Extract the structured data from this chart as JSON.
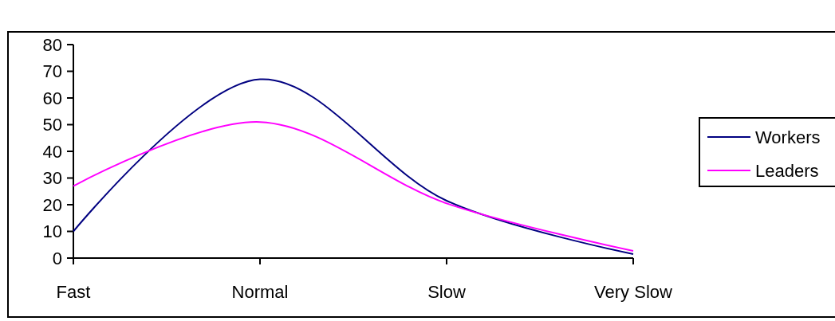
{
  "chart_data": {
    "type": "line",
    "categories": [
      "Fast",
      "Normal",
      "Slow",
      "Very Slow"
    ],
    "series": [
      {
        "name": "Workers",
        "color": "#000080",
        "values": [
          10,
          67,
          21.5,
          1.5
        ]
      },
      {
        "name": "Leaders",
        "color": "#ff00ff",
        "values": [
          27,
          51,
          20.5,
          2.7
        ]
      }
    ],
    "ylim": [
      0,
      80
    ],
    "yticks": [
      0,
      10,
      20,
      30,
      40,
      50,
      60,
      70,
      80
    ],
    "grid": false,
    "legend": "right",
    "marker": "none",
    "line_style": "solid"
  }
}
